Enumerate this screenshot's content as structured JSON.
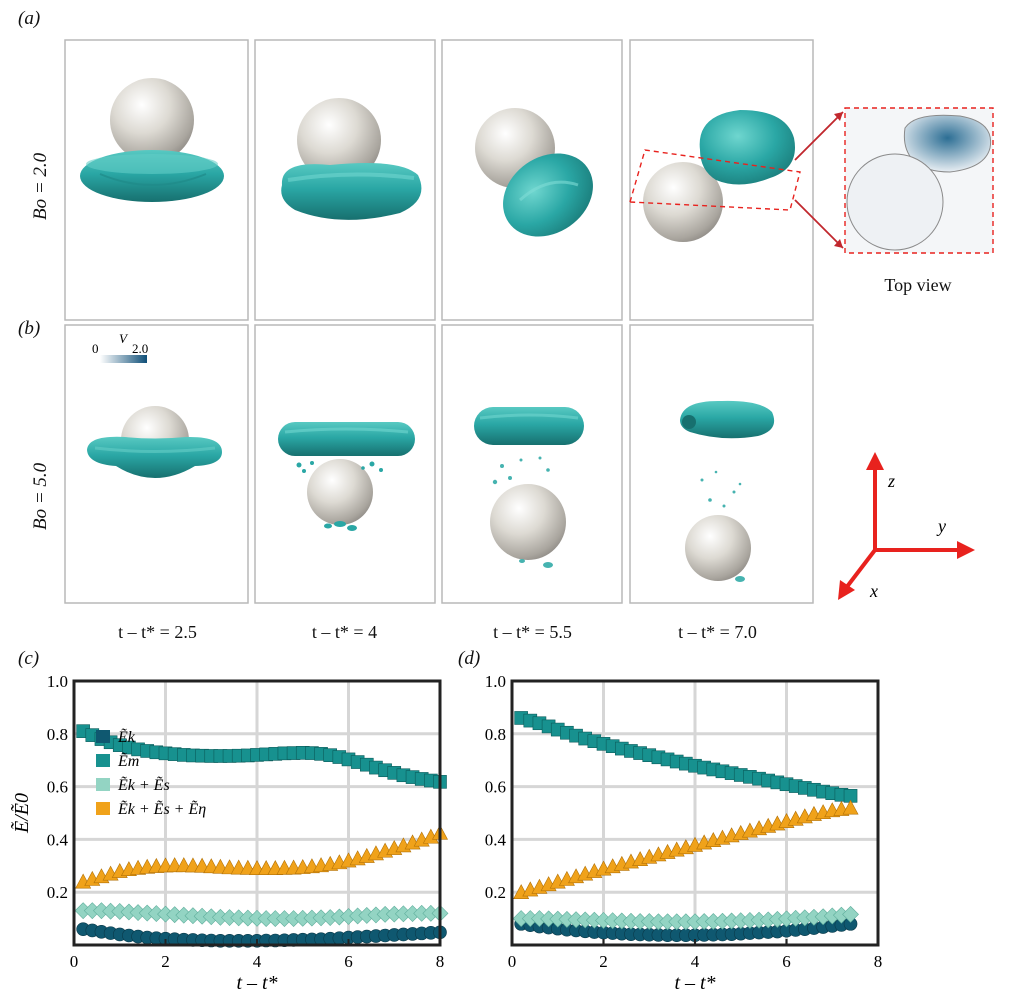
{
  "panel_labels": {
    "a": "(a)",
    "b": "(b)",
    "c": "(c)",
    "d": "(d)"
  },
  "rows": {
    "a_label": "Bo = 2.0",
    "b_label": "Bo = 5.0"
  },
  "time_labels": [
    "t – t* = 2.5",
    "t – t* = 4",
    "t – t* = 5.5",
    "t – t* = 7.0"
  ],
  "top_view_label": "Top view",
  "colorbar": {
    "min": "0",
    "max": "2.0",
    "var": "V"
  },
  "axes_labels": {
    "z": "z",
    "y": "y",
    "x": "x"
  },
  "colors": {
    "droplet": "#2aa7a5",
    "sphere": "#d4d1ca",
    "Ek": "#0f5870",
    "Em": "#17918f",
    "EkEs": "#93d4c3",
    "EkEsEeta": "#f0a21a",
    "arrow": "#e8221e"
  },
  "chart_data": [
    {
      "type": "scatter",
      "panel": "(c)",
      "xlabel": "t – t*",
      "ylabel": "Ẽ/Ẽ0",
      "xlim": [
        0,
        8
      ],
      "ylim": [
        0,
        1.0
      ],
      "xticks": [
        "0",
        "2",
        "4",
        "6",
        "8"
      ],
      "yticks": [
        "0.2",
        "0.4",
        "0.6",
        "0.8",
        "1.0"
      ],
      "grid": true,
      "legend_position": "left",
      "x": [
        0.2,
        0.4,
        0.6,
        0.8,
        1.0,
        1.2,
        1.4,
        1.6,
        1.8,
        2.0,
        2.2,
        2.4,
        2.6,
        2.8,
        3.0,
        3.2,
        3.4,
        3.6,
        3.8,
        4.0,
        4.2,
        4.4,
        4.6,
        4.8,
        5.0,
        5.2,
        5.4,
        5.6,
        5.8,
        6.0,
        6.2,
        6.4,
        6.6,
        6.8,
        7.0,
        7.2,
        7.4,
        7.6,
        7.8,
        8.0
      ],
      "series": [
        {
          "name": "Ẽk",
          "marker": "circle",
          "values": [
            0.06,
            0.055,
            0.05,
            0.045,
            0.04,
            0.036,
            0.032,
            0.028,
            0.026,
            0.024,
            0.022,
            0.02,
            0.019,
            0.018,
            0.017,
            0.016,
            0.016,
            0.016,
            0.016,
            0.016,
            0.017,
            0.017,
            0.018,
            0.019,
            0.02,
            0.021,
            0.022,
            0.024,
            0.026,
            0.028,
            0.03,
            0.032,
            0.034,
            0.036,
            0.038,
            0.04,
            0.042,
            0.044,
            0.046,
            0.048
          ]
        },
        {
          "name": "Ẽm",
          "marker": "square",
          "values": [
            0.81,
            0.795,
            0.78,
            0.768,
            0.757,
            0.748,
            0.741,
            0.735,
            0.73,
            0.726,
            0.723,
            0.72,
            0.718,
            0.717,
            0.716,
            0.716,
            0.716,
            0.717,
            0.718,
            0.72,
            0.722,
            0.724,
            0.726,
            0.727,
            0.728,
            0.727,
            0.724,
            0.719,
            0.712,
            0.703,
            0.693,
            0.683,
            0.672,
            0.662,
            0.652,
            0.643,
            0.636,
            0.629,
            0.623,
            0.618
          ]
        },
        {
          "name": "Ẽk + Ẽs",
          "marker": "diamond",
          "values": [
            0.13,
            0.13,
            0.13,
            0.128,
            0.127,
            0.125,
            0.123,
            0.121,
            0.119,
            0.117,
            0.115,
            0.113,
            0.111,
            0.109,
            0.107,
            0.105,
            0.104,
            0.103,
            0.102,
            0.101,
            0.1,
            0.1,
            0.1,
            0.1,
            0.101,
            0.102,
            0.103,
            0.104,
            0.106,
            0.108,
            0.11,
            0.112,
            0.114,
            0.116,
            0.117,
            0.118,
            0.119,
            0.12,
            0.12,
            0.12
          ]
        },
        {
          "name": "Ẽk + Ẽs + Ẽη",
          "marker": "triangle",
          "values": [
            0.24,
            0.25,
            0.26,
            0.27,
            0.28,
            0.287,
            0.292,
            0.296,
            0.299,
            0.301,
            0.302,
            0.302,
            0.301,
            0.3,
            0.298,
            0.296,
            0.294,
            0.293,
            0.292,
            0.291,
            0.291,
            0.291,
            0.292,
            0.293,
            0.295,
            0.298,
            0.302,
            0.307,
            0.313,
            0.32,
            0.328,
            0.337,
            0.347,
            0.357,
            0.367,
            0.377,
            0.388,
            0.399,
            0.41,
            0.425
          ]
        }
      ]
    },
    {
      "type": "scatter",
      "panel": "(d)",
      "xlabel": "t – t*",
      "ylabel": "",
      "xlim": [
        0,
        8
      ],
      "ylim": [
        0,
        1.0
      ],
      "xticks": [
        "0",
        "2",
        "4",
        "6",
        "8"
      ],
      "yticks": [
        "0.2",
        "0.4",
        "0.6",
        "0.8",
        "1.0"
      ],
      "grid": true,
      "x": [
        0.2,
        0.4,
        0.6,
        0.8,
        1.0,
        1.2,
        1.4,
        1.6,
        1.8,
        2.0,
        2.2,
        2.4,
        2.6,
        2.8,
        3.0,
        3.2,
        3.4,
        3.6,
        3.8,
        4.0,
        4.2,
        4.4,
        4.6,
        4.8,
        5.0,
        5.2,
        5.4,
        5.6,
        5.8,
        6.0,
        6.2,
        6.4,
        6.6,
        6.8,
        7.0,
        7.2,
        7.4
      ],
      "series": [
        {
          "name": "Ẽk",
          "marker": "circle",
          "values": [
            0.08,
            0.075,
            0.07,
            0.066,
            0.062,
            0.058,
            0.055,
            0.052,
            0.049,
            0.047,
            0.045,
            0.043,
            0.041,
            0.04,
            0.039,
            0.038,
            0.037,
            0.037,
            0.037,
            0.037,
            0.038,
            0.039,
            0.04,
            0.041,
            0.043,
            0.045,
            0.047,
            0.049,
            0.051,
            0.054,
            0.057,
            0.06,
            0.064,
            0.068,
            0.072,
            0.076,
            0.08
          ]
        },
        {
          "name": "Ẽm",
          "marker": "square",
          "values": [
            0.86,
            0.85,
            0.84,
            0.828,
            0.816,
            0.804,
            0.793,
            0.782,
            0.772,
            0.762,
            0.753,
            0.744,
            0.735,
            0.727,
            0.719,
            0.711,
            0.703,
            0.695,
            0.687,
            0.679,
            0.672,
            0.665,
            0.658,
            0.651,
            0.644,
            0.637,
            0.63,
            0.623,
            0.616,
            0.609,
            0.602,
            0.595,
            0.588,
            0.581,
            0.575,
            0.569,
            0.565
          ]
        },
        {
          "name": "Ẽk + Ẽs",
          "marker": "diamond",
          "values": [
            0.1,
            0.1,
            0.1,
            0.099,
            0.098,
            0.097,
            0.096,
            0.095,
            0.094,
            0.093,
            0.092,
            0.091,
            0.09,
            0.089,
            0.089,
            0.088,
            0.088,
            0.088,
            0.088,
            0.088,
            0.089,
            0.089,
            0.09,
            0.091,
            0.092,
            0.093,
            0.094,
            0.095,
            0.097,
            0.099,
            0.101,
            0.103,
            0.105,
            0.107,
            0.11,
            0.113,
            0.116
          ]
        },
        {
          "name": "Ẽk + Ẽs + Ẽη",
          "marker": "triangle",
          "values": [
            0.2,
            0.21,
            0.22,
            0.23,
            0.24,
            0.25,
            0.26,
            0.27,
            0.28,
            0.289,
            0.298,
            0.307,
            0.316,
            0.325,
            0.334,
            0.343,
            0.352,
            0.361,
            0.37,
            0.379,
            0.388,
            0.397,
            0.406,
            0.415,
            0.424,
            0.433,
            0.442,
            0.451,
            0.46,
            0.469,
            0.478,
            0.487,
            0.496,
            0.503,
            0.51,
            0.515,
            0.52
          ]
        }
      ]
    }
  ]
}
